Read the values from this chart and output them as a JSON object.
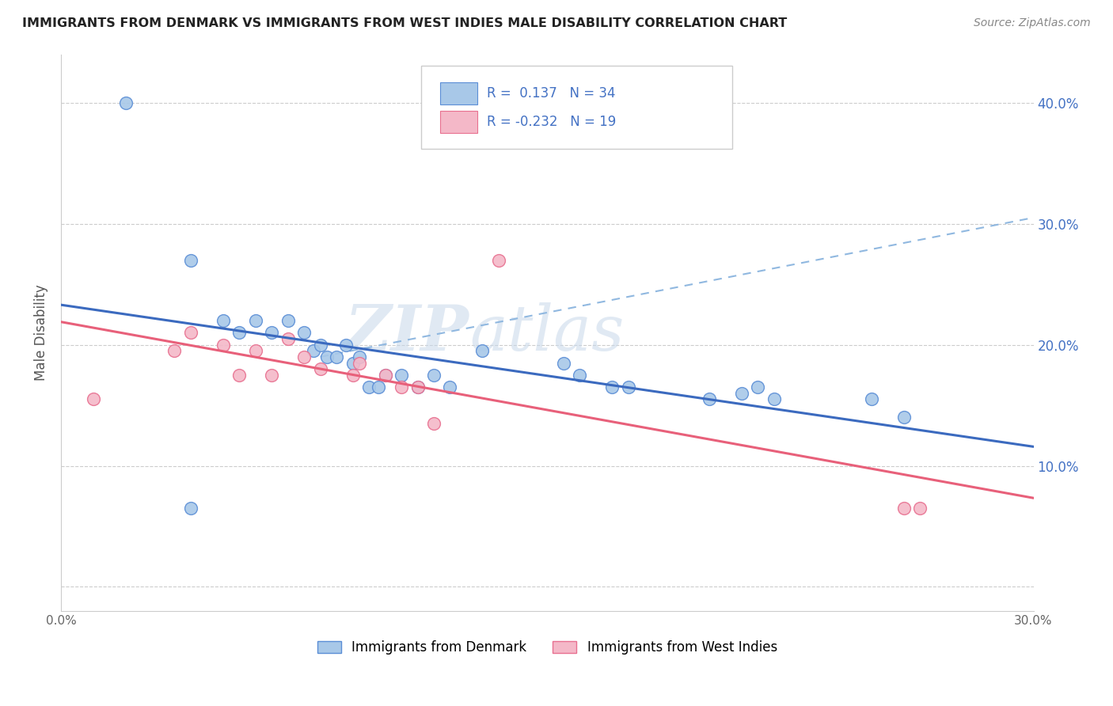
{
  "title": "IMMIGRANTS FROM DENMARK VS IMMIGRANTS FROM WEST INDIES MALE DISABILITY CORRELATION CHART",
  "source": "Source: ZipAtlas.com",
  "ylabel": "Male Disability",
  "watermark_zip": "ZIP",
  "watermark_atlas": "atlas",
  "r_denmark": 0.137,
  "n_denmark": 34,
  "r_westindies": -0.232,
  "n_westindies": 19,
  "xlim": [
    0.0,
    0.3
  ],
  "ylim": [
    -0.02,
    0.44
  ],
  "yticks": [
    0.0,
    0.1,
    0.2,
    0.3,
    0.4
  ],
  "ytick_labels": [
    "",
    "10.0%",
    "20.0%",
    "30.0%",
    "40.0%"
  ],
  "denmark_color": "#a8c8e8",
  "denmark_edge_color": "#5b8ed6",
  "denmark_line_color": "#3b6abf",
  "westindies_color": "#f4b8c8",
  "westindies_edge_color": "#e87090",
  "westindies_line_color": "#e8607a",
  "denmark_scatter_x": [
    0.02,
    0.04,
    0.05,
    0.055,
    0.06,
    0.065,
    0.07,
    0.075,
    0.078,
    0.08,
    0.082,
    0.085,
    0.088,
    0.09,
    0.092,
    0.095,
    0.098,
    0.1,
    0.105,
    0.11,
    0.115,
    0.12,
    0.13,
    0.155,
    0.16,
    0.17,
    0.175,
    0.2,
    0.21,
    0.215,
    0.22,
    0.25,
    0.26,
    0.04
  ],
  "denmark_scatter_y": [
    0.4,
    0.27,
    0.22,
    0.21,
    0.22,
    0.21,
    0.22,
    0.21,
    0.195,
    0.2,
    0.19,
    0.19,
    0.2,
    0.185,
    0.19,
    0.165,
    0.165,
    0.175,
    0.175,
    0.165,
    0.175,
    0.165,
    0.195,
    0.185,
    0.175,
    0.165,
    0.165,
    0.155,
    0.16,
    0.165,
    0.155,
    0.155,
    0.14,
    0.065
  ],
  "westindies_scatter_x": [
    0.01,
    0.035,
    0.04,
    0.05,
    0.055,
    0.06,
    0.065,
    0.07,
    0.075,
    0.08,
    0.09,
    0.092,
    0.1,
    0.105,
    0.11,
    0.115,
    0.135,
    0.26,
    0.265
  ],
  "westindies_scatter_y": [
    0.155,
    0.195,
    0.21,
    0.2,
    0.175,
    0.195,
    0.175,
    0.205,
    0.19,
    0.18,
    0.175,
    0.185,
    0.175,
    0.165,
    0.165,
    0.135,
    0.27,
    0.065,
    0.065
  ],
  "background_color": "#ffffff",
  "grid_color": "#cccccc",
  "title_color": "#222222",
  "axis_text_color": "#4472c4",
  "legend_text_color": "#4472c4"
}
